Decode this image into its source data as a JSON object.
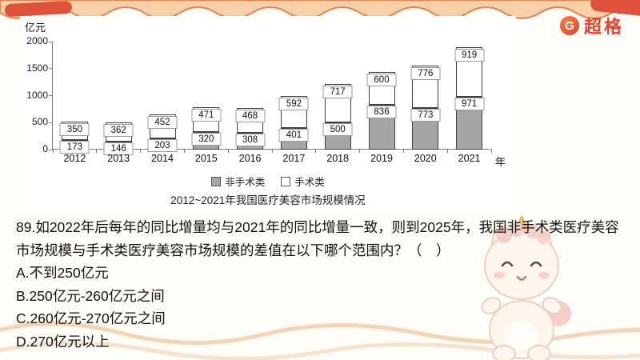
{
  "logo": {
    "g": "G",
    "name": "超格"
  },
  "colors": {
    "brand_red": "#e8432c",
    "bar_gray": "#a6a6a6",
    "bar_white": "#ffffff",
    "wave_orange": "#e8824c"
  },
  "chart": {
    "unit_label": "亿元",
    "x_suffix": "年",
    "title": "2012~2021年我国医疗美容市场规模情况",
    "legend": [
      {
        "label": "非手术类"
      },
      {
        "label": "手术类"
      }
    ]
  },
  "chart_data": {
    "type": "bar",
    "stacked": true,
    "title": "2012~2021年我国医疗美容市场规模情况",
    "ylabel": "亿元",
    "xlabel": "年",
    "ylim": [
      0,
      2000
    ],
    "yticks": [
      0,
      500,
      1000,
      1500,
      2000
    ],
    "grid": false,
    "legend_position": "bottom",
    "categories": [
      "2012",
      "2013",
      "2014",
      "2015",
      "2016",
      "2017",
      "2018",
      "2019",
      "2020",
      "2021"
    ],
    "series": [
      {
        "name": "非手术类",
        "color": "#a6a6a6",
        "values": [
          173,
          146,
          203,
          320,
          308,
          401,
          500,
          836,
          773,
          971
        ]
      },
      {
        "name": "手术类",
        "color": "#ffffff",
        "values": [
          350,
          362,
          452,
          471,
          468,
          592,
          717,
          600,
          776,
          919
        ]
      }
    ]
  },
  "question": {
    "lines": [
      "89.如2022年后每年的同比增量均与2021年的同比增量一致，则到2025年，我国非手术类医疗美容",
      "市场规模与手术类医疗美容市场规模的差值在以下哪个范围内？（　）"
    ],
    "options": [
      "A.不到250亿元",
      "B.250亿元-260亿元之间",
      "C.260亿元-270亿元之间",
      "D.270亿元以上"
    ]
  }
}
